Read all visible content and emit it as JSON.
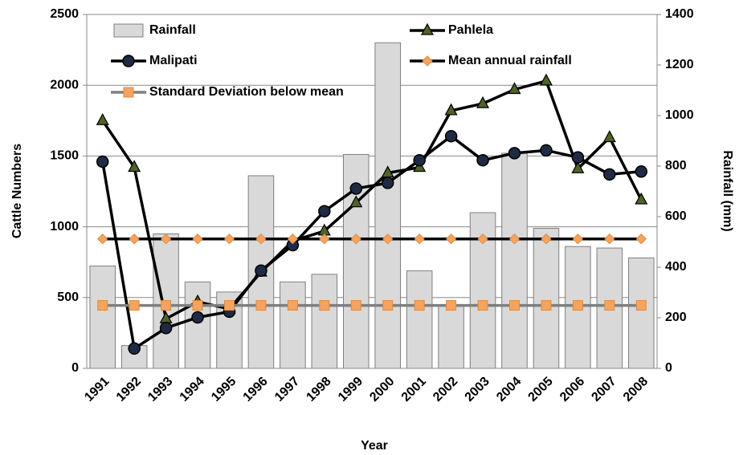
{
  "chart_data": {
    "type": "bar-line",
    "x_label": "Year",
    "y_label": "Cattle Numbers",
    "y2_label": "Rainfall (mm)",
    "categories": [
      "1991",
      "1992",
      "1993",
      "1994",
      "1995",
      "1996",
      "1997",
      "1998",
      "1999",
      "2000",
      "2001",
      "2002",
      "2003",
      "2004",
      "2005",
      "2006",
      "2007",
      "2008"
    ],
    "ylim": [
      0,
      2500
    ],
    "yticks": [
      0,
      500,
      1000,
      1500,
      2000,
      2500
    ],
    "y2lim": [
      0,
      1400
    ],
    "y2ticks": [
      0,
      200,
      400,
      600,
      800,
      1000,
      1200,
      1400
    ],
    "grid": true,
    "series": [
      {
        "name": "Rainfall",
        "type": "bar",
        "axis": "y2",
        "color": "#d9d9d9",
        "values": [
          405,
          90,
          532,
          342,
          302,
          762,
          342,
          372,
          846,
          1288,
          386,
          250,
          616,
          851,
          554,
          482,
          476,
          437
        ]
      },
      {
        "name": "Pahlela",
        "type": "line",
        "axis": "y",
        "color": "#000000",
        "marker": "triangle",
        "marker_color": "#4f6228",
        "values": [
          1750,
          1420,
          350,
          470,
          420,
          680,
          900,
          970,
          1170,
          1380,
          1420,
          1820,
          1870,
          1970,
          2030,
          1410,
          1630,
          1190
        ]
      },
      {
        "name": "Malipati",
        "type": "line",
        "axis": "y",
        "color": "#000000",
        "marker": "circle",
        "marker_color": "#1f2a44",
        "values": [
          1460,
          140,
          285,
          360,
          400,
          690,
          870,
          1110,
          1270,
          1310,
          1470,
          1640,
          1470,
          1520,
          1540,
          1490,
          1370,
          1390
        ]
      },
      {
        "name": "Mean annual rainfall",
        "type": "line",
        "axis": "y2",
        "color": "#000000",
        "marker": "diamond",
        "marker_color": "#f4a460",
        "values": [
          512,
          512,
          512,
          512,
          512,
          512,
          512,
          512,
          512,
          512,
          512,
          512,
          512,
          512,
          512,
          512,
          512,
          512
        ]
      },
      {
        "name": "Standard Deviation below mean",
        "type": "line",
        "axis": "y2",
        "color": "#7f7f7f",
        "marker": "square",
        "marker_color": "#f4a460",
        "values": [
          249,
          249,
          249,
          249,
          249,
          249,
          249,
          249,
          249,
          249,
          249,
          249,
          249,
          249,
          249,
          249,
          249,
          249
        ]
      }
    ]
  }
}
